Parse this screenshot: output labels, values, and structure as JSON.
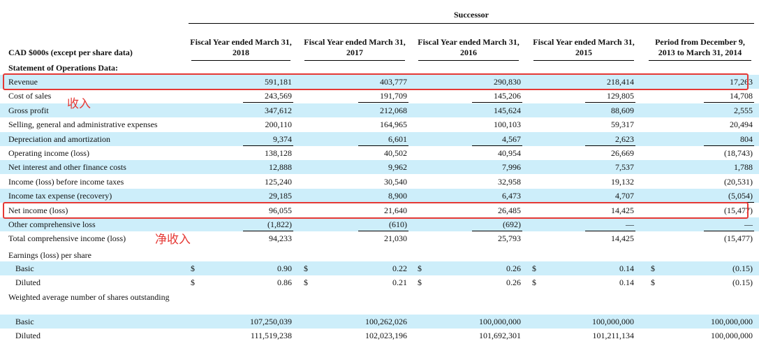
{
  "header": {
    "successor": "Successor",
    "cad_label": "CAD $000s (except per share data)",
    "columns": [
      "Fiscal Year ended March 31, 2018",
      "Fiscal Year ended March 31, 2017",
      "Fiscal Year ended March 31, 2016",
      "Fiscal Year ended March 31, 2015",
      "Period from December 9, 2013 to March 31, 2014"
    ]
  },
  "section": "Statement of Operations Data:",
  "rows": [
    {
      "label": "Revenue",
      "values": [
        "591,181",
        "403,777",
        "290,830",
        "218,414",
        "17,263"
      ]
    },
    {
      "label": "Cost of sales",
      "values": [
        "243,569",
        "191,709",
        "145,206",
        "129,805",
        "14,708"
      ]
    },
    {
      "label": "Gross profit",
      "values": [
        "347,612",
        "212,068",
        "145,624",
        "88,609",
        "2,555"
      ]
    },
    {
      "label": "Selling, general and administrative expenses",
      "values": [
        "200,110",
        "164,965",
        "100,103",
        "59,317",
        "20,494"
      ]
    },
    {
      "label": "Depreciation and amortization",
      "values": [
        "9,374",
        "6,601",
        "4,567",
        "2,623",
        "804"
      ]
    },
    {
      "label": "Operating income (loss)",
      "values": [
        "138,128",
        "40,502",
        "40,954",
        "26,669",
        "(18,743)"
      ]
    },
    {
      "label": "Net interest and other finance costs",
      "values": [
        "12,888",
        "9,962",
        "7,996",
        "7,537",
        "1,788"
      ]
    },
    {
      "label": "Income (loss) before income taxes",
      "values": [
        "125,240",
        "30,540",
        "32,958",
        "19,132",
        "(20,531)"
      ]
    },
    {
      "label": "Income tax expense (recovery)",
      "values": [
        "29,185",
        "8,900",
        "6,473",
        "4,707",
        "(5,054)"
      ]
    },
    {
      "label": "Net income (loss)",
      "values": [
        "96,055",
        "21,640",
        "26,485",
        "14,425",
        "(15,477)"
      ]
    },
    {
      "label": "Other comprehensive loss",
      "values": [
        "(1,822)",
        "(610)",
        "(692)",
        "—",
        "—"
      ]
    },
    {
      "label": "Total comprehensive income (loss)",
      "values": [
        "94,233",
        "21,030",
        "25,793",
        "14,425",
        "(15,477)"
      ]
    }
  ],
  "eps": {
    "label": "Earnings (loss) per share",
    "currency": "$",
    "basic": {
      "label": "Basic",
      "values": [
        "0.90",
        "0.22",
        "0.26",
        "0.14",
        "(0.15)"
      ]
    },
    "diluted": {
      "label": "Diluted",
      "values": [
        "0.86",
        "0.21",
        "0.26",
        "0.14",
        "(0.15)"
      ]
    }
  },
  "shares": {
    "label": "Weighted average number of shares outstanding",
    "basic": {
      "label": "Basic",
      "values": [
        "107,250,039",
        "100,262,026",
        "100,000,000",
        "100,000,000",
        "100,000,000"
      ]
    },
    "diluted": {
      "label": "Diluted",
      "values": [
        "111,519,238",
        "102,023,196",
        "101,692,301",
        "101,211,134",
        "100,000,000"
      ]
    }
  },
  "annotations": {
    "revenue_note": "收入",
    "net_income_note": "净收入",
    "color": "#e53935"
  },
  "colors": {
    "row_shade": "#cdeefa",
    "highlight": "#e53935"
  }
}
